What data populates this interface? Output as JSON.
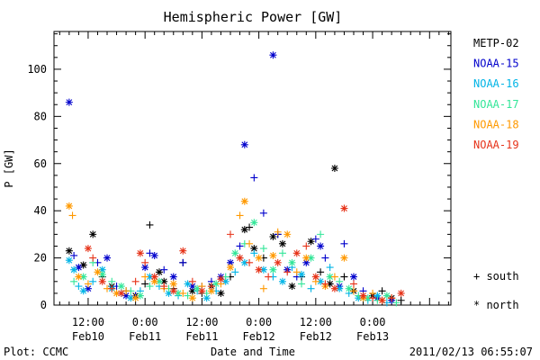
{
  "chart_data": {
    "type": "scatter",
    "title": "Hemispheric Power [GW]",
    "xlabel": "Date and Time",
    "ylabel": "P [GW]",
    "ylim": [
      0,
      116
    ],
    "yticks": [
      0,
      20,
      40,
      60,
      80,
      100
    ],
    "x_unit": "hours since 2011-02-10 00:00",
    "xlim": [
      4.8,
      88.5
    ],
    "xticks": [
      {
        "hour": 12,
        "time": "12:00",
        "date": "Feb10"
      },
      {
        "hour": 24,
        "time": "0:00",
        "date": "Feb11"
      },
      {
        "hour": 36,
        "time": "12:00",
        "date": "Feb11"
      },
      {
        "hour": 48,
        "time": "0:00",
        "date": "Feb12"
      },
      {
        "hour": 60,
        "time": "12:00",
        "date": "Feb12"
      },
      {
        "hour": 72,
        "time": "0:00",
        "date": "Feb13"
      }
    ],
    "legend_position": "right",
    "marker_legend": {
      "south": "+ south",
      "north": "* north"
    },
    "series": [
      {
        "name": "METP-02",
        "color": "#000000",
        "points": [
          [
            8,
            23,
            "n"
          ],
          [
            11,
            17,
            "n"
          ],
          [
            13,
            30,
            "n"
          ],
          [
            15,
            12,
            "s"
          ],
          [
            17,
            8,
            "n"
          ],
          [
            20,
            6,
            "s"
          ],
          [
            22,
            4,
            "n"
          ],
          [
            24,
            9,
            "s"
          ],
          [
            25,
            34,
            "s"
          ],
          [
            27,
            14,
            "n"
          ],
          [
            28,
            10,
            "n"
          ],
          [
            30,
            7,
            "s"
          ],
          [
            32,
            18,
            "s"
          ],
          [
            34,
            6,
            "n"
          ],
          [
            36,
            5,
            "s"
          ],
          [
            38,
            8,
            "n"
          ],
          [
            40,
            5,
            "n"
          ],
          [
            42,
            12,
            "s"
          ],
          [
            44,
            20,
            "s"
          ],
          [
            45,
            32,
            "n"
          ],
          [
            46,
            33,
            "s"
          ],
          [
            47,
            24,
            "n"
          ],
          [
            49,
            20,
            "s"
          ],
          [
            51,
            29,
            "n"
          ],
          [
            52,
            30,
            "s"
          ],
          [
            53,
            26,
            "n"
          ],
          [
            55,
            8,
            "n"
          ],
          [
            57,
            12,
            "s"
          ],
          [
            59,
            27,
            "n"
          ],
          [
            61,
            14,
            "s"
          ],
          [
            63,
            9,
            "n"
          ],
          [
            64,
            58,
            "n"
          ],
          [
            66,
            12,
            "s"
          ],
          [
            68,
            6,
            "n"
          ],
          [
            70,
            4,
            "s"
          ],
          [
            72,
            4,
            "n"
          ],
          [
            74,
            6,
            "s"
          ],
          [
            76,
            3,
            "n"
          ],
          [
            78,
            2,
            "s"
          ]
        ]
      },
      {
        "name": "NOAA-15",
        "color": "#0000cc",
        "points": [
          [
            8,
            86,
            "n"
          ],
          [
            9,
            21,
            "s"
          ],
          [
            10,
            16,
            "n"
          ],
          [
            12,
            7,
            "n"
          ],
          [
            14,
            18,
            "s"
          ],
          [
            16,
            20,
            "n"
          ],
          [
            18,
            8,
            "s"
          ],
          [
            20,
            4,
            "n"
          ],
          [
            22,
            4,
            "s"
          ],
          [
            24,
            16,
            "n"
          ],
          [
            25,
            22,
            "s"
          ],
          [
            26,
            21,
            "n"
          ],
          [
            28,
            15,
            "s"
          ],
          [
            30,
            12,
            "n"
          ],
          [
            32,
            18,
            "s"
          ],
          [
            34,
            8,
            "n"
          ],
          [
            36,
            8,
            "s"
          ],
          [
            38,
            10,
            "s"
          ],
          [
            40,
            12,
            "n"
          ],
          [
            42,
            18,
            "n"
          ],
          [
            44,
            25,
            "s"
          ],
          [
            45,
            68,
            "n"
          ],
          [
            47,
            54,
            "s"
          ],
          [
            49,
            39,
            "s"
          ],
          [
            51,
            106,
            "n"
          ],
          [
            52,
            30,
            "s"
          ],
          [
            54,
            15,
            "n"
          ],
          [
            56,
            12,
            "s"
          ],
          [
            58,
            18,
            "n"
          ],
          [
            60,
            28,
            "s"
          ],
          [
            61,
            25,
            "n"
          ],
          [
            62,
            20,
            "s"
          ],
          [
            65,
            8,
            "n"
          ],
          [
            66,
            26,
            "s"
          ],
          [
            68,
            12,
            "n"
          ],
          [
            70,
            6,
            "s"
          ],
          [
            73,
            3,
            "n"
          ],
          [
            76,
            2,
            "n"
          ]
        ]
      },
      {
        "name": "NOAA-16",
        "color": "#00b4e6",
        "points": [
          [
            8,
            19,
            "n"
          ],
          [
            9,
            15,
            "n"
          ],
          [
            10,
            8,
            "s"
          ],
          [
            11,
            6,
            "n"
          ],
          [
            13,
            10,
            "s"
          ],
          [
            15,
            15,
            "n"
          ],
          [
            17,
            7,
            "n"
          ],
          [
            19,
            5,
            "s"
          ],
          [
            21,
            3,
            "n"
          ],
          [
            23,
            6,
            "s"
          ],
          [
            25,
            12,
            "n"
          ],
          [
            27,
            8,
            "s"
          ],
          [
            29,
            5,
            "n"
          ],
          [
            31,
            4,
            "s"
          ],
          [
            33,
            9,
            "n"
          ],
          [
            35,
            6,
            "s"
          ],
          [
            37,
            3,
            "n"
          ],
          [
            39,
            6,
            "s"
          ],
          [
            41,
            10,
            "n"
          ],
          [
            43,
            14,
            "s"
          ],
          [
            45,
            18,
            "n"
          ],
          [
            47,
            22,
            "s"
          ],
          [
            49,
            15,
            "n"
          ],
          [
            51,
            12,
            "s"
          ],
          [
            53,
            10,
            "n"
          ],
          [
            55,
            16,
            "s"
          ],
          [
            57,
            13,
            "n"
          ],
          [
            59,
            7,
            "s"
          ],
          [
            61,
            10,
            "n"
          ],
          [
            63,
            16,
            "s"
          ],
          [
            65,
            7,
            "n"
          ],
          [
            67,
            5,
            "s"
          ],
          [
            69,
            3,
            "n"
          ],
          [
            71,
            2,
            "s"
          ],
          [
            73,
            4,
            "n"
          ],
          [
            75,
            1,
            "s"
          ]
        ]
      },
      {
        "name": "NOAA-17",
        "color": "#33e699",
        "points": [
          [
            9,
            10,
            "s"
          ],
          [
            11,
            12,
            "n"
          ],
          [
            13,
            18,
            "s"
          ],
          [
            15,
            13,
            "n"
          ],
          [
            17,
            10,
            "s"
          ],
          [
            19,
            8,
            "n"
          ],
          [
            21,
            6,
            "s"
          ],
          [
            23,
            4,
            "n"
          ],
          [
            25,
            8,
            "s"
          ],
          [
            27,
            10,
            "n"
          ],
          [
            29,
            7,
            "s"
          ],
          [
            31,
            5,
            "n"
          ],
          [
            33,
            4,
            "s"
          ],
          [
            35,
            7,
            "n"
          ],
          [
            37,
            5,
            "s"
          ],
          [
            39,
            9,
            "n"
          ],
          [
            41,
            12,
            "s"
          ],
          [
            43,
            22,
            "n"
          ],
          [
            45,
            26,
            "s"
          ],
          [
            47,
            35,
            "n"
          ],
          [
            49,
            24,
            "s"
          ],
          [
            51,
            15,
            "n"
          ],
          [
            53,
            22,
            "s"
          ],
          [
            55,
            18,
            "n"
          ],
          [
            57,
            9,
            "s"
          ],
          [
            59,
            20,
            "n"
          ],
          [
            61,
            30,
            "s"
          ],
          [
            63,
            12,
            "n"
          ],
          [
            65,
            10,
            "s"
          ],
          [
            67,
            7,
            "n"
          ],
          [
            69,
            4,
            "s"
          ],
          [
            71,
            3,
            "n"
          ],
          [
            73,
            2,
            "s"
          ],
          [
            75,
            4,
            "n"
          ],
          [
            77,
            1,
            "s"
          ]
        ]
      },
      {
        "name": "NOAA-18",
        "color": "#ff9900",
        "points": [
          [
            8,
            42,
            "n"
          ],
          [
            8.7,
            38,
            "s"
          ],
          [
            10,
            12,
            "n"
          ],
          [
            12,
            9,
            "s"
          ],
          [
            14,
            14,
            "n"
          ],
          [
            16,
            7,
            "s"
          ],
          [
            18,
            5,
            "n"
          ],
          [
            20,
            6,
            "s"
          ],
          [
            22,
            3,
            "n"
          ],
          [
            24,
            12,
            "s"
          ],
          [
            26,
            10,
            "n"
          ],
          [
            28,
            7,
            "s"
          ],
          [
            30,
            9,
            "n"
          ],
          [
            32,
            5,
            "s"
          ],
          [
            34,
            3,
            "n"
          ],
          [
            36,
            8,
            "s"
          ],
          [
            38,
            6,
            "n"
          ],
          [
            40,
            9,
            "s"
          ],
          [
            42,
            16,
            "n"
          ],
          [
            44,
            38,
            "s"
          ],
          [
            45,
            44,
            "n"
          ],
          [
            46,
            26,
            "s"
          ],
          [
            48,
            20,
            "n"
          ],
          [
            49,
            7,
            "s"
          ],
          [
            51,
            21,
            "n"
          ],
          [
            52,
            31,
            "s"
          ],
          [
            54,
            30,
            "n"
          ],
          [
            56,
            14,
            "s"
          ],
          [
            58,
            20,
            "n"
          ],
          [
            60,
            10,
            "s"
          ],
          [
            62,
            8,
            "n"
          ],
          [
            64,
            12,
            "s"
          ],
          [
            66,
            20,
            "n"
          ],
          [
            68,
            6,
            "s"
          ],
          [
            70,
            3,
            "n"
          ],
          [
            72,
            5,
            "s"
          ],
          [
            74,
            2,
            "n"
          ],
          [
            76,
            3,
            "s"
          ]
        ]
      },
      {
        "name": "NOAA-19",
        "color": "#e63319",
        "points": [
          [
            12,
            24,
            "n"
          ],
          [
            13,
            20,
            "s"
          ],
          [
            15,
            10,
            "n"
          ],
          [
            17,
            7,
            "s"
          ],
          [
            19,
            5,
            "n"
          ],
          [
            22,
            10,
            "s"
          ],
          [
            23,
            22,
            "n"
          ],
          [
            24,
            18,
            "s"
          ],
          [
            26,
            12,
            "n"
          ],
          [
            28,
            8,
            "s"
          ],
          [
            30,
            6,
            "n"
          ],
          [
            32,
            23,
            "n"
          ],
          [
            34,
            10,
            "s"
          ],
          [
            36,
            6,
            "n"
          ],
          [
            38,
            8,
            "s"
          ],
          [
            40,
            11,
            "n"
          ],
          [
            42,
            30,
            "s"
          ],
          [
            44,
            20,
            "n"
          ],
          [
            46,
            18,
            "s"
          ],
          [
            48,
            15,
            "n"
          ],
          [
            50,
            12,
            "s"
          ],
          [
            52,
            18,
            "n"
          ],
          [
            54,
            14,
            "s"
          ],
          [
            56,
            22,
            "n"
          ],
          [
            58,
            25,
            "s"
          ],
          [
            60,
            12,
            "n"
          ],
          [
            62,
            9,
            "s"
          ],
          [
            64,
            7,
            "n"
          ],
          [
            66,
            41,
            "n"
          ],
          [
            68,
            9,
            "s"
          ],
          [
            70,
            4,
            "n"
          ],
          [
            72,
            3,
            "s"
          ],
          [
            74,
            2,
            "n"
          ],
          [
            76,
            3,
            "s"
          ],
          [
            78,
            5,
            "n"
          ]
        ]
      }
    ]
  },
  "footer": {
    "left": "Plot: CCMC",
    "right": "2011/02/13 06:55:07"
  }
}
